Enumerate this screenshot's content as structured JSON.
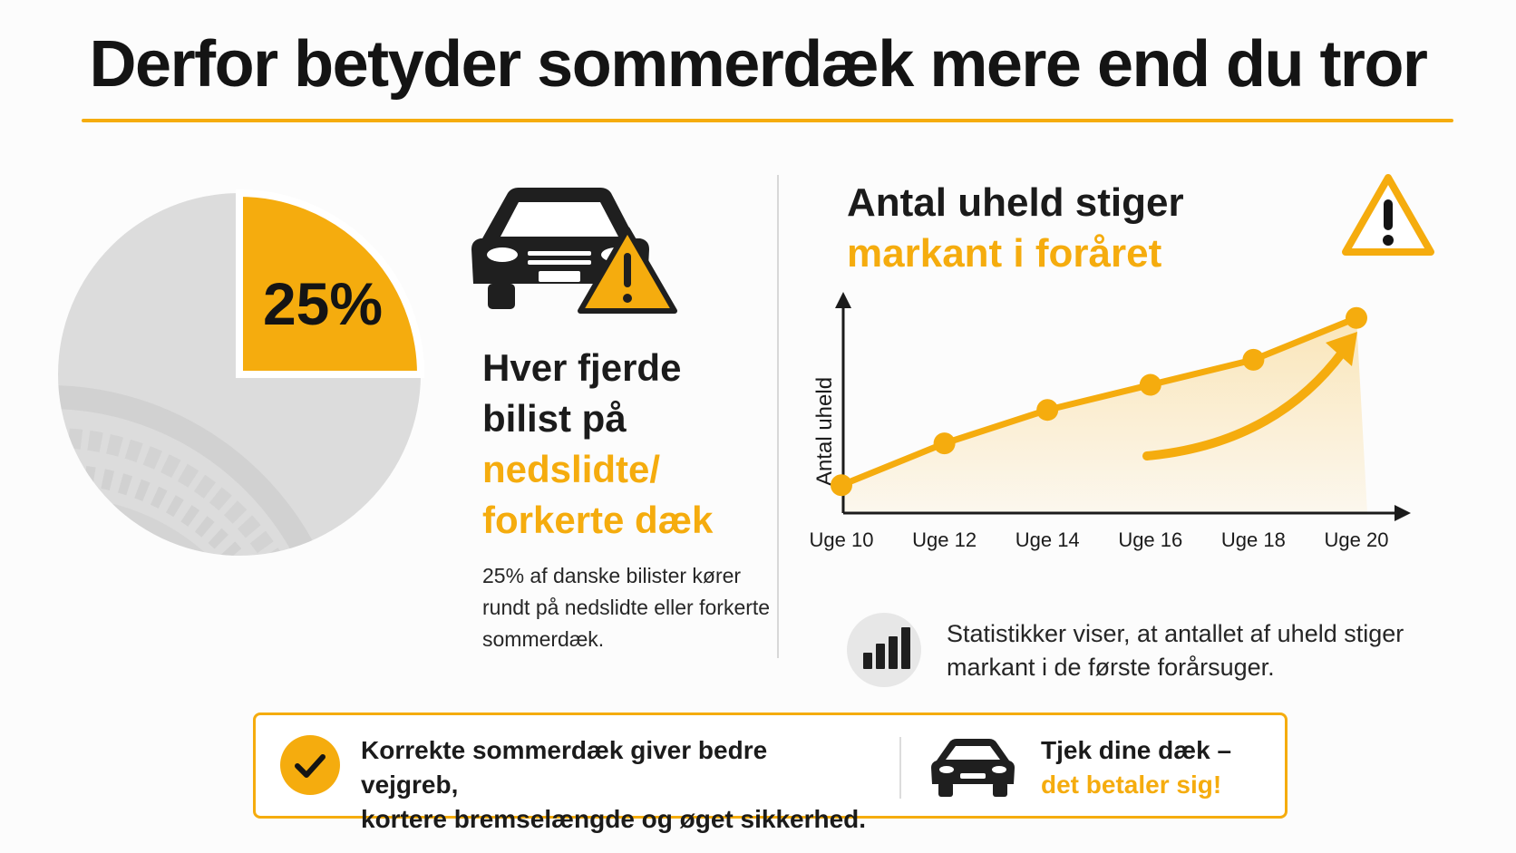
{
  "title": "Derfor betyder sommerdæk mere end du tror",
  "colors": {
    "accent": "#f5ac0e",
    "dark": "#1b1b1b",
    "pie_rest": "#dcdcdc",
    "muted": "#e7e7e7"
  },
  "left": {
    "pie": {
      "percent_label": "25%",
      "share": 0.25
    },
    "headline_dark_1": "Hver fjerde",
    "headline_dark_2": "bilist på",
    "headline_accent_1": "nedslidte/",
    "headline_accent_2": "forkerte dæk",
    "body": "25% af danske bilister kører rundt på nedslidte eller forkerte sommerdæk.",
    "icons": [
      "car-icon",
      "warning-icon"
    ]
  },
  "right": {
    "title_line1": "Antal uheld stiger",
    "title_line2": "markant i foråret",
    "stat_text": "Statistikker viser, at antallet af uheld stiger markant i de første forårsuger.",
    "icons": [
      "warning-icon",
      "bar-chart-icon"
    ]
  },
  "chart_data": {
    "type": "line",
    "title": "",
    "xlabel": "",
    "ylabel": "Antal uheld",
    "categories": [
      "Uge 10",
      "Uge 12",
      "Uge 14",
      "Uge 16",
      "Uge 18",
      "Uge 20"
    ],
    "values": [
      1.0,
      2.5,
      3.7,
      4.6,
      5.5,
      7.0
    ],
    "ylim": [
      0,
      8
    ],
    "y_tick_labels_shown": false,
    "grid": false,
    "area_fill": true,
    "trend_arrow": true
  },
  "bottom": {
    "left_text_1": "Korrekte sommerdæk giver bedre vejgreb,",
    "left_text_2": "kortere bremselængde og øget sikkerhed.",
    "right_text_1": "Tjek dine dæk –",
    "right_text_2": "det betaler sig!",
    "icons": [
      "check-icon",
      "car-icon"
    ]
  }
}
